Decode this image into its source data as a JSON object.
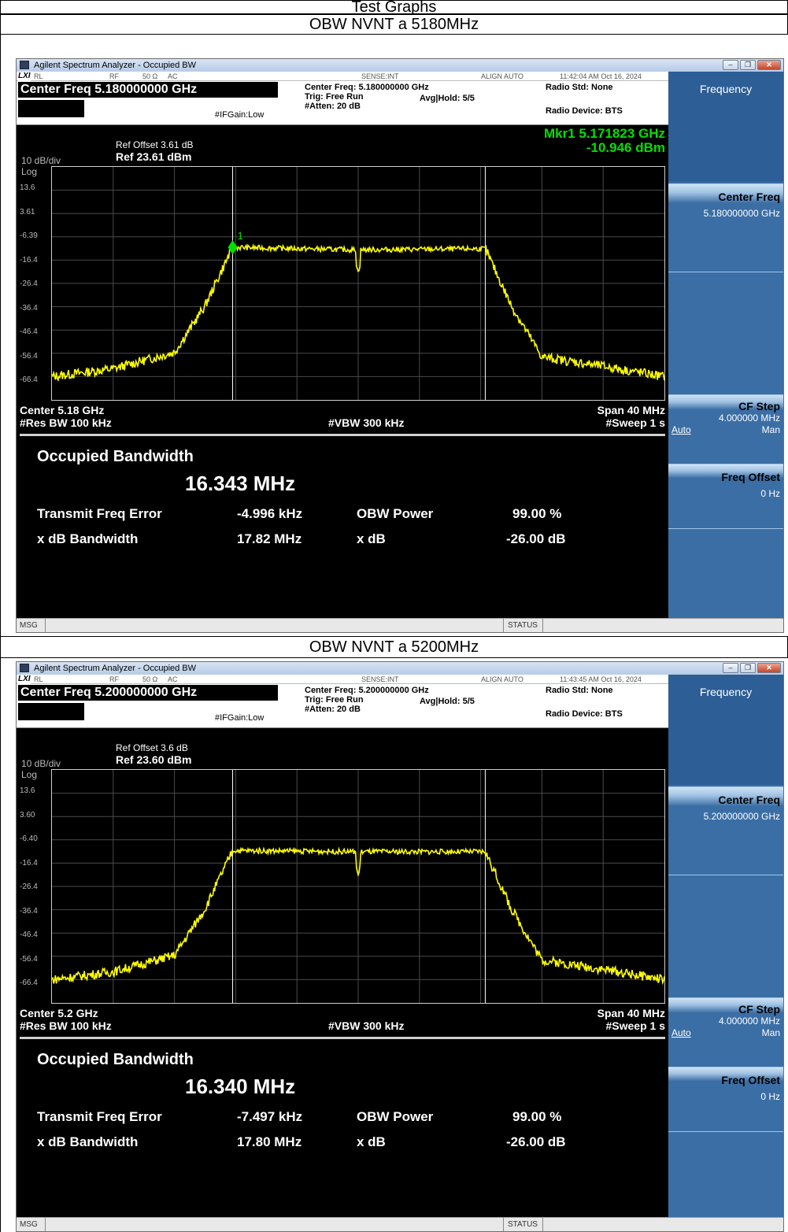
{
  "document": {
    "heading": "Test Graphs",
    "captions": [
      "OBW NVNT a 5180MHz",
      "OBW NVNT a 5200MHz"
    ]
  },
  "screens": [
    {
      "window_title": "Agilent Spectrum Analyzer - Occupied BW",
      "status_strip": {
        "lxi": "LXI",
        "rl": "RL",
        "rf": "RF",
        "ohm": "50 Ω",
        "ac": "AC",
        "sense": "SENSE:INT",
        "align": "ALIGN AUTO",
        "timestamp": "11:42:04 AM Oct 16, 2024"
      },
      "center_freq_title": "Center Freq 5.180000000 GHz",
      "center_freq_line": "Center Freq: 5.180000000 GHz",
      "trig": "Trig: Free Run",
      "avg_hold": "Avg|Hold: 5/5",
      "atten": "#Atten: 20 dB",
      "if_gain": "#IFGain:Low",
      "radio_std": "Radio Std: None",
      "radio_device": "Radio Device: BTS",
      "marker_label": "Mkr1  5.171823 GHz",
      "marker_value": "-10.946 dBm",
      "marker_num": "1",
      "ref_offset": "Ref Offset 3.61 dB",
      "ref_level": "Ref 23.61 dBm",
      "scale": "10 dB/div",
      "log": "Log",
      "y_ticks": [
        "13.6",
        "3.61",
        "-6.39",
        "-16.4",
        "-26.4",
        "-36.4",
        "-46.4",
        "-56.4",
        "-66.4"
      ],
      "center_label": "Center  5.18 GHz",
      "res_bw": "#Res BW  100 kHz",
      "vbw": "#VBW  300 kHz",
      "span": "Span 40 MHz",
      "sweep": "#Sweep  1 s",
      "results": {
        "title": "Occupied Bandwidth",
        "obw": "16.343 MHz",
        "tfe_label": "Transmit Freq Error",
        "tfe_value": "-4.996 kHz",
        "obw_power_label": "OBW Power",
        "obw_power_value": "99.00 %",
        "xdb_bw_label": "x dB Bandwidth",
        "xdb_bw_value": "17.82 MHz",
        "xdb_label": "x dB",
        "xdb_value": "-26.00 dB"
      },
      "sidebar": {
        "title": "Frequency",
        "center_freq_label": "Center Freq",
        "center_freq_value": "5.180000000 GHz",
        "cf_step_label": "CF Step",
        "cf_step_value": "4.000000 MHz",
        "auto": "Auto",
        "man": "Man",
        "freq_offset_label": "Freq Offset",
        "freq_offset_value": "0 Hz"
      },
      "msg": "MSG",
      "status": "STATUS",
      "show_marker": true
    },
    {
      "window_title": "Agilent Spectrum Analyzer - Occupied BW",
      "status_strip": {
        "lxi": "LXI",
        "rl": "RL",
        "rf": "RF",
        "ohm": "50 Ω",
        "ac": "AC",
        "sense": "SENSE:INT",
        "align": "ALIGN AUTO",
        "timestamp": "11:43:45 AM Oct 16, 2024"
      },
      "center_freq_title": "Center Freq 5.200000000 GHz",
      "center_freq_line": "Center Freq: 5.200000000 GHz",
      "trig": "Trig: Free Run",
      "avg_hold": "Avg|Hold: 5/5",
      "atten": "#Atten: 20 dB",
      "if_gain": "#IFGain:Low",
      "radio_std": "Radio Std: None",
      "radio_device": "Radio Device: BTS",
      "marker_label": "",
      "marker_value": "",
      "marker_num": "",
      "ref_offset": "Ref Offset 3.6 dB",
      "ref_level": "Ref 23.60 dBm",
      "scale": "10 dB/div",
      "log": "Log",
      "y_ticks": [
        "13.6",
        "3.60",
        "-6.40",
        "-16.4",
        "-26.4",
        "-36.4",
        "-46.4",
        "-56.4",
        "-66.4"
      ],
      "center_label": "Center  5.2 GHz",
      "res_bw": "#Res BW  100 kHz",
      "vbw": "#VBW  300 kHz",
      "span": "Span 40 MHz",
      "sweep": "#Sweep  1 s",
      "results": {
        "title": "Occupied Bandwidth",
        "obw": "16.340 MHz",
        "tfe_label": "Transmit Freq Error",
        "tfe_value": "-7.497 kHz",
        "obw_power_label": "OBW Power",
        "obw_power_value": "99.00 %",
        "xdb_bw_label": "x dB Bandwidth",
        "xdb_bw_value": "17.80 MHz",
        "xdb_label": "x dB",
        "xdb_value": "-26.00 dB"
      },
      "sidebar": {
        "title": "Frequency",
        "center_freq_label": "Center Freq",
        "center_freq_value": "5.200000000 GHz",
        "cf_step_label": "CF Step",
        "cf_step_value": "4.000000 MHz",
        "auto": "Auto",
        "man": "Man",
        "freq_offset_label": "Freq Offset",
        "freq_offset_value": "0 Hz"
      },
      "msg": "MSG",
      "status": "STATUS",
      "show_marker": false
    }
  ],
  "colors": {
    "trace": "#ffff00",
    "marker": "#00e000",
    "sidebar": "#3a6ea5",
    "screen_bg": "#000000"
  },
  "chart_data": [
    {
      "type": "line",
      "x_units": "GHz",
      "y_units": "dBm",
      "xlim": [
        5.16,
        5.2
      ],
      "ylim": [
        -76.39,
        23.61
      ],
      "series": [
        {
          "x": [
            5.16,
            5.164,
            5.168,
            5.17,
            5.1718,
            5.18,
            5.1883,
            5.19,
            5.192,
            5.196,
            5.2
          ],
          "y": [
            -66.4,
            -63,
            -56,
            -36,
            -10.9,
            -12,
            -11.5,
            -36,
            -58,
            -62,
            -66.4
          ]
        }
      ],
      "notch": {
        "x": 5.18,
        "y": -17
      }
    },
    {
      "type": "line",
      "x_units": "GHz",
      "y_units": "dBm",
      "xlim": [
        5.18,
        5.22
      ],
      "ylim": [
        -76.4,
        23.6
      ],
      "series": [
        {
          "x": [
            5.18,
            5.184,
            5.188,
            5.19,
            5.1918,
            5.2,
            5.2083,
            5.21,
            5.212,
            5.216,
            5.22
          ],
          "y": [
            -66.4,
            -63,
            -56,
            -36,
            -11,
            -11.5,
            -11.5,
            -36,
            -58,
            -62,
            -66.4
          ]
        }
      ],
      "notch": {
        "x": 5.2,
        "y": -17
      }
    }
  ]
}
